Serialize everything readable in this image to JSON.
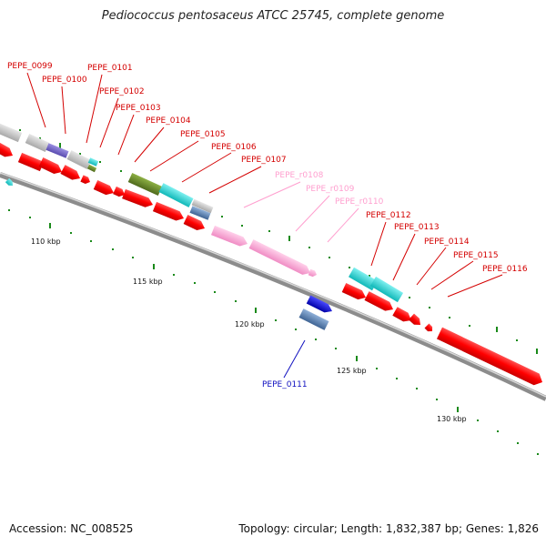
{
  "title": "Pediococcus pentosaceus ATCC 25745, complete genome",
  "footer": {
    "accession": "Accession: NC_008525",
    "summary": "Topology: circular; Length: 1,832,387 bp; Genes: 1,826"
  },
  "colors": {
    "backbone": "#8c8c8c",
    "cds_default": "#ff0000",
    "grey_feature": "#c8c8c8",
    "rna_pink": "#ffa3d6",
    "cyan_feature": "#19d7d7",
    "olive_feature": "#6b8b2a",
    "steelblue_feature": "#5a7fb0",
    "blue_feature": "#1a1ad6",
    "tick_green": "#1a8a1a",
    "label_red": "#d40000",
    "label_pink": "#ff9fcf",
    "label_blue": "#1010c0"
  },
  "scale_labels": [
    "110 kbp",
    "115 kbp",
    "120 kbp",
    "125 kbp",
    "130 kbp"
  ],
  "gene_labels": [
    {
      "text": "PEPE_0099",
      "color": "red"
    },
    {
      "text": "PEPE_0100",
      "color": "red"
    },
    {
      "text": "PEPE_0101",
      "color": "red"
    },
    {
      "text": "PEPE_0102",
      "color": "red"
    },
    {
      "text": "PEPE_0103",
      "color": "red"
    },
    {
      "text": "PEPE_0104",
      "color": "red"
    },
    {
      "text": "PEPE_0105",
      "color": "red"
    },
    {
      "text": "PEPE_0106",
      "color": "red"
    },
    {
      "text": "PEPE_0107",
      "color": "red"
    },
    {
      "text": "PEPE_r0108",
      "color": "pink"
    },
    {
      "text": "PEPE_r0109",
      "color": "pink"
    },
    {
      "text": "PEPE_r0110",
      "color": "pink"
    },
    {
      "text": "PEPE_0111",
      "color": "blue"
    },
    {
      "text": "PEPE_0112",
      "color": "red"
    },
    {
      "text": "PEPE_0113",
      "color": "red"
    },
    {
      "text": "PEPE_0114",
      "color": "red"
    },
    {
      "text": "PEPE_0115",
      "color": "red"
    },
    {
      "text": "PEPE_0116",
      "color": "red"
    }
  ]
}
